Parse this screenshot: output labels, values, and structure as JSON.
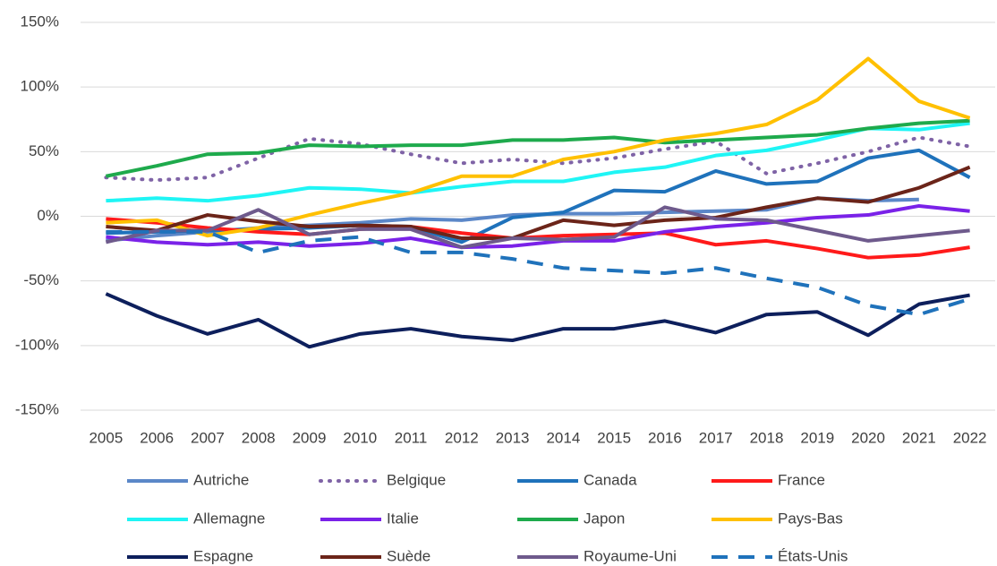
{
  "chart_data": {
    "type": "line",
    "categories": [
      "2005",
      "2006",
      "2007",
      "2008",
      "2009",
      "2010",
      "2011",
      "2012",
      "2013",
      "2014",
      "2015",
      "2016",
      "2017",
      "2018",
      "2019",
      "2020",
      "2021",
      "2022"
    ],
    "ylim": [
      -150,
      150
    ],
    "yticks": [
      {
        "value": -150,
        "label": "-150%"
      },
      {
        "value": -100,
        "label": "-100%"
      },
      {
        "value": -50,
        "label": "-50%"
      },
      {
        "value": 0,
        "label": "0%"
      },
      {
        "value": 50,
        "label": "50%"
      },
      {
        "value": 100,
        "label": "100%"
      },
      {
        "value": 150,
        "label": "150%"
      }
    ],
    "grid": true,
    "legend": "bottom",
    "series": [
      {
        "name": "Autriche",
        "color": "#5b87c8",
        "style": "solid",
        "values": [
          -19,
          -15,
          -12,
          -9,
          -7,
          -5,
          -2,
          -3,
          1,
          2,
          2,
          3,
          4,
          5,
          14,
          12,
          13,
          null
        ]
      },
      {
        "name": "Belgique",
        "color": "#7f63a6",
        "style": "dotted",
        "values": [
          30,
          28,
          30,
          45,
          60,
          56,
          48,
          41,
          44,
          41,
          45,
          52,
          58,
          33,
          41,
          50,
          61,
          54
        ]
      },
      {
        "name": "Canada",
        "color": "#1f72bb",
        "style": "solid",
        "values": [
          -13,
          -12,
          -11,
          -10,
          -9,
          -7,
          -8,
          -20,
          -1,
          3,
          20,
          19,
          35,
          25,
          27,
          45,
          51,
          30
        ]
      },
      {
        "name": "France",
        "color": "#ff1a1a",
        "style": "solid",
        "values": [
          -2,
          -5,
          -9,
          -12,
          -14,
          -10,
          -8,
          -13,
          -17,
          -15,
          -14,
          -13,
          -22,
          -19,
          -25,
          -32,
          -30,
          -24
        ]
      },
      {
        "name": "Allemagne",
        "color": "#1ff5f5",
        "style": "solid",
        "values": [
          12,
          14,
          12,
          16,
          22,
          21,
          18,
          23,
          27,
          27,
          34,
          38,
          47,
          51,
          59,
          68,
          67,
          72
        ]
      },
      {
        "name": "Italie",
        "color": "#7a22e8",
        "style": "solid",
        "values": [
          -16,
          -20,
          -22,
          -20,
          -23,
          -21,
          -17,
          -24,
          -23,
          -19,
          -19,
          -12,
          -8,
          -5,
          -1,
          1,
          8,
          4
        ]
      },
      {
        "name": "Japon",
        "color": "#1eaa4c",
        "style": "solid",
        "values": [
          31,
          39,
          48,
          49,
          55,
          54,
          55,
          55,
          59,
          59,
          61,
          57,
          59,
          61,
          63,
          68,
          72,
          74
        ]
      },
      {
        "name": "Pays-Bas",
        "color": "#ffc000",
        "style": "solid",
        "values": [
          -5,
          -3,
          -15,
          -9,
          1,
          10,
          18,
          31,
          31,
          44,
          50,
          59,
          64,
          71,
          90,
          122,
          89,
          76
        ]
      },
      {
        "name": "Espagne",
        "color": "#0d1f5c",
        "style": "solid",
        "values": [
          -60,
          -77,
          -91,
          -80,
          -101,
          -91,
          -87,
          -93,
          -96,
          -87,
          -87,
          -81,
          -90,
          -76,
          -74,
          -92,
          -68,
          -61
        ]
      },
      {
        "name": "Suède",
        "color": "#6b2419",
        "style": "solid",
        "values": [
          -8,
          -11,
          1,
          -4,
          -8,
          -7,
          -8,
          -17,
          -17,
          -3,
          -7,
          -3,
          -1,
          7,
          14,
          11,
          22,
          38
        ]
      },
      {
        "name": "Royaume-Uni",
        "color": "#6e5a8c",
        "style": "solid",
        "values": [
          -20,
          -11,
          -11,
          5,
          -14,
          -10,
          -10,
          -24,
          -17,
          -18,
          -16,
          7,
          -2,
          -3,
          -11,
          -19,
          -15,
          -11
        ]
      },
      {
        "name": "États-Unis",
        "color": "#1f72bb",
        "style": "dashed",
        "values": [
          -12,
          -12,
          -12,
          -28,
          -19,
          -16,
          -28,
          -28,
          -33,
          -40,
          -42,
          -44,
          -40,
          -48,
          -55,
          -69,
          -76,
          -64
        ]
      }
    ]
  }
}
